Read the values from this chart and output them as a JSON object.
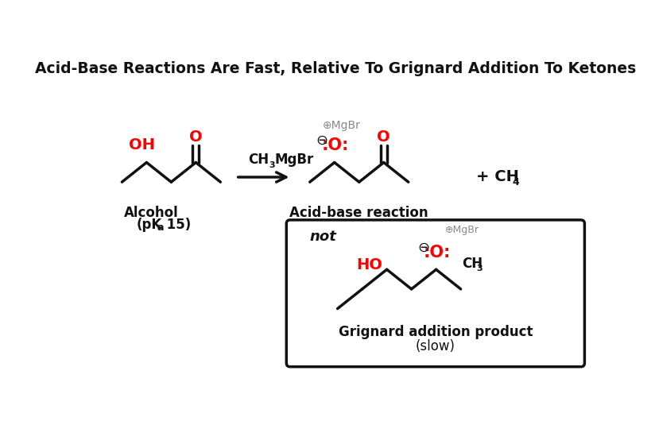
{
  "title": "Acid-Base Reactions Are Fast, Relative To Grignard Addition To Ketones",
  "title_fontsize": 13.5,
  "bg_color": "#ffffff",
  "red_color": "#ff0000",
  "gray_color": "#888888",
  "black_color": "#111111",
  "label_alcohol": "Alcohol",
  "label_product_label": "Acid-base reaction",
  "label_grignard": "Grignard addition product",
  "label_slow": "(slow)",
  "figsize": [
    8.24,
    5.3
  ],
  "dpi": 100
}
